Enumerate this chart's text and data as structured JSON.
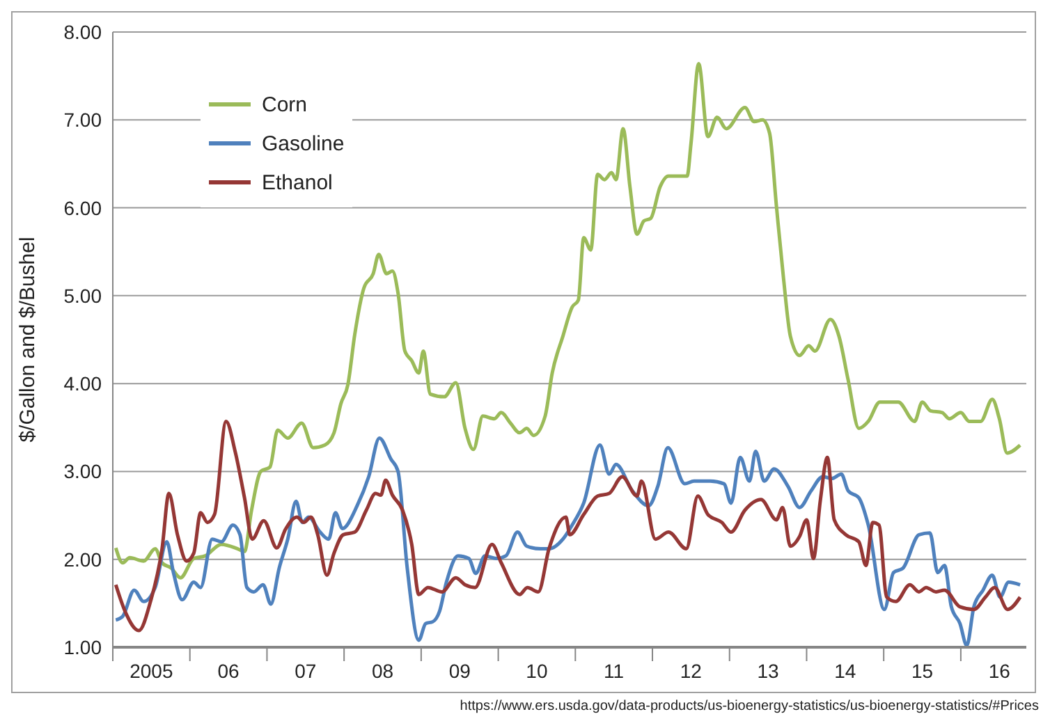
{
  "chart_data": {
    "type": "line",
    "ylabel": "$/Gallon and $/Bushel",
    "xlim": [
      "2005-01-01",
      "2016-11-07"
    ],
    "ylim": [
      1,
      8
    ],
    "yticks": [
      {
        "value": 1,
        "label": "1.00"
      },
      {
        "value": 2,
        "label": "2.00"
      },
      {
        "value": 3,
        "label": "3.00"
      },
      {
        "value": 4,
        "label": "4.00"
      },
      {
        "value": 5,
        "label": "5.00"
      },
      {
        "value": 6,
        "label": "6.00"
      },
      {
        "value": 7,
        "label": "7.00"
      },
      {
        "value": 8,
        "label": "8.00"
      }
    ],
    "xticks": [
      {
        "value": "2005-01-01",
        "label": null
      },
      {
        "value": "2005-07-01",
        "label": "2005"
      },
      {
        "value": "2006-01-01",
        "label": null
      },
      {
        "value": "2006-07-01",
        "label": "06"
      },
      {
        "value": "2007-01-01",
        "label": null
      },
      {
        "value": "2007-07-01",
        "label": "07"
      },
      {
        "value": "2008-01-01",
        "label": null
      },
      {
        "value": "2008-07-01",
        "label": "08"
      },
      {
        "value": "2009-01-01",
        "label": null
      },
      {
        "value": "2009-07-01",
        "label": "09"
      },
      {
        "value": "2010-01-01",
        "label": null
      },
      {
        "value": "2010-07-01",
        "label": "10"
      },
      {
        "value": "2011-01-01",
        "label": null
      },
      {
        "value": "2011-07-01",
        "label": "11"
      },
      {
        "value": "2012-01-01",
        "label": null
      },
      {
        "value": "2012-07-01",
        "label": "12"
      },
      {
        "value": "2013-01-01",
        "label": null
      },
      {
        "value": "2013-07-01",
        "label": "13"
      },
      {
        "value": "2014-01-01",
        "label": null
      },
      {
        "value": "2014-07-01",
        "label": "14"
      },
      {
        "value": "2015-01-01",
        "label": null
      },
      {
        "value": "2015-07-01",
        "label": "15"
      },
      {
        "value": "2016-01-01",
        "label": null
      },
      {
        "value": "2016-07-01",
        "label": "16"
      }
    ],
    "grid": "y",
    "legend": "top left",
    "marker": "none",
    "line_style": "solid",
    "annotations": [
      "https://www.ers.usda.gov/data-products/us-bioenergy-statistics/us-bioenergy-statistics/#Prices"
    ],
    "series": [
      {
        "name": "Corn",
        "color": "#9bbb59",
        "x": [
          "2005-01-15",
          "2005-02-17",
          "2005-03-20",
          "2005-05-25",
          "2005-07-19",
          "2005-08-21",
          "2005-10-04",
          "2005-11-17",
          "2006-01-19",
          "2006-03-13",
          "2006-05-28",
          "2006-08-14",
          "2006-09-16",
          "2006-10-19",
          "2006-12-02",
          "2007-01-15",
          "2007-02-21",
          "2007-04-08",
          "2007-06-13",
          "2007-08-07",
          "2007-10-01",
          "2007-11-14",
          "2007-12-16",
          "2008-01-19",
          "2008-02-21",
          "2008-04-04",
          "2008-05-17",
          "2008-06-13",
          "2008-07-19",
          "2008-08-17",
          "2008-09-13",
          "2008-10-15",
          "2008-11-17",
          "2008-12-20",
          "2009-01-11",
          "2009-02-14",
          "2009-04-19",
          "2009-06-13",
          "2009-07-26",
          "2009-09-05",
          "2009-10-19",
          "2009-12-13",
          "2010-01-15",
          "2010-02-28",
          "2010-04-11",
          "2010-05-14",
          "2010-06-16",
          "2010-08-10",
          "2010-09-13",
          "2010-11-03",
          "2010-12-16",
          "2011-01-15",
          "2011-02-10",
          "2011-03-13",
          "2011-04-15",
          "2011-05-17",
          "2011-06-20",
          "2011-07-11",
          "2011-08-14",
          "2011-09-16",
          "2011-10-19",
          "2011-11-21",
          "2011-12-23",
          "2012-02-07",
          "2012-03-16",
          "2012-06-13",
          "2012-07-01",
          "2012-08-07",
          "2012-09-20",
          "2012-11-03",
          "2012-12-16",
          "2013-03-13",
          "2013-04-26",
          "2013-06-05",
          "2013-07-08",
          "2013-08-10",
          "2013-09-13",
          "2013-10-15",
          "2013-11-28",
          "2014-01-11",
          "2014-02-10",
          "2014-04-22",
          "2014-06-02",
          "2014-07-15",
          "2014-09-05",
          "2014-10-19",
          "2014-12-13",
          "2015-03-09",
          "2015-05-25",
          "2015-07-01",
          "2015-08-10",
          "2015-10-04",
          "2015-11-07",
          "2016-01-01",
          "2016-02-10",
          "2016-04-04",
          "2016-05-28",
          "2016-07-01",
          "2016-08-07",
          "2016-10-08"
        ],
        "values": [
          2.13,
          1.96,
          2.02,
          1.98,
          2.12,
          1.96,
          1.9,
          1.79,
          2.01,
          2.04,
          2.17,
          2.12,
          2.09,
          2.56,
          3.0,
          3.05,
          3.47,
          3.38,
          3.55,
          3.27,
          3.3,
          3.44,
          3.77,
          3.99,
          4.56,
          5.09,
          5.25,
          5.47,
          5.25,
          5.28,
          5.03,
          4.37,
          4.26,
          4.12,
          4.37,
          3.88,
          3.85,
          4.01,
          3.49,
          3.25,
          3.63,
          3.6,
          3.67,
          3.55,
          3.44,
          3.49,
          3.41,
          3.63,
          4.12,
          4.54,
          4.87,
          4.95,
          5.66,
          5.52,
          6.38,
          6.32,
          6.4,
          6.32,
          6.9,
          6.24,
          5.7,
          5.85,
          5.88,
          6.24,
          6.36,
          6.36,
          6.73,
          7.64,
          6.81,
          7.03,
          6.9,
          7.14,
          6.98,
          7.0,
          6.85,
          6.02,
          5.2,
          4.54,
          4.32,
          4.43,
          4.37,
          4.73,
          4.54,
          4.04,
          3.49,
          3.57,
          3.79,
          3.79,
          3.57,
          3.79,
          3.69,
          3.67,
          3.6,
          3.67,
          3.57,
          3.57,
          3.82,
          3.6,
          3.21,
          3.3
        ]
      },
      {
        "name": "Gasoline",
        "color": "#4f81bd",
        "x": [
          "2005-01-15",
          "2005-02-17",
          "2005-04-11",
          "2005-05-25",
          "2005-07-19",
          "2005-09-13",
          "2005-10-15",
          "2005-11-25",
          "2006-01-19",
          "2006-02-21",
          "2006-04-15",
          "2006-05-28",
          "2006-07-22",
          "2006-08-25",
          "2006-09-27",
          "2006-10-29",
          "2006-12-13",
          "2007-01-19",
          "2007-02-28",
          "2007-04-08",
          "2007-05-17",
          "2007-06-16",
          "2007-07-15",
          "2007-09-09",
          "2007-10-19",
          "2007-11-21",
          "2007-12-23",
          "2008-03-02",
          "2008-04-26",
          "2008-06-16",
          "2008-08-10",
          "2008-09-13",
          "2008-10-26",
          "2008-12-20",
          "2009-01-22",
          "2009-02-25",
          "2009-03-27",
          "2009-04-29",
          "2009-06-23",
          "2009-08-14",
          "2009-09-16",
          "2009-10-29",
          "2009-12-23",
          "2010-02-07",
          "2010-04-01",
          "2010-05-14",
          "2010-07-19",
          "2010-08-28",
          "2010-11-03",
          "2010-12-16",
          "2011-02-10",
          "2011-04-26",
          "2011-06-09",
          "2011-07-11",
          "2011-09-27",
          "2011-12-13",
          "2012-01-26",
          "2012-03-13",
          "2012-06-02",
          "2012-07-15",
          "2012-10-01",
          "2012-12-05",
          "2013-01-08",
          "2013-02-21",
          "2013-04-04",
          "2013-05-03",
          "2013-06-13",
          "2013-07-29",
          "2013-10-04",
          "2013-11-28",
          "2014-01-22",
          "2014-03-16",
          "2014-04-29",
          "2014-06-13",
          "2014-07-15",
          "2014-09-05",
          "2014-10-19",
          "2015-01-04",
          "2015-02-17",
          "2015-04-01",
          "2015-06-16",
          "2015-08-07",
          "2015-09-13",
          "2015-10-15",
          "2015-11-17",
          "2015-12-27",
          "2016-01-29",
          "2016-03-02",
          "2016-04-15",
          "2016-05-28",
          "2016-07-04",
          "2016-08-14",
          "2016-10-08"
        ],
        "values": [
          1.31,
          1.35,
          1.65,
          1.52,
          1.68,
          2.2,
          1.84,
          1.54,
          1.74,
          1.68,
          2.23,
          2.2,
          2.39,
          2.28,
          1.68,
          1.63,
          1.71,
          1.49,
          1.9,
          2.23,
          2.66,
          2.42,
          2.48,
          2.31,
          2.23,
          2.53,
          2.35,
          2.61,
          2.94,
          3.38,
          3.14,
          3.0,
          1.9,
          1.08,
          1.27,
          1.29,
          1.41,
          1.74,
          2.04,
          2.01,
          1.84,
          2.04,
          2.01,
          2.04,
          2.31,
          2.15,
          2.12,
          2.12,
          2.23,
          2.39,
          2.64,
          3.3,
          2.97,
          3.08,
          2.78,
          2.61,
          2.83,
          3.27,
          2.86,
          2.89,
          2.89,
          2.86,
          2.64,
          3.16,
          2.89,
          3.23,
          2.89,
          3.03,
          2.83,
          2.59,
          2.78,
          2.94,
          2.92,
          2.97,
          2.78,
          2.7,
          2.39,
          1.43,
          1.85,
          1.9,
          2.28,
          2.3,
          1.85,
          1.93,
          1.46,
          1.27,
          1.02,
          1.46,
          1.65,
          1.82,
          1.57,
          1.74,
          1.71
        ]
      },
      {
        "name": "Ethanol",
        "color": "#953735",
        "x": [
          "2005-01-15",
          "2005-02-28",
          "2005-05-03",
          "2005-06-27",
          "2005-08-21",
          "2005-09-23",
          "2005-11-03",
          "2005-12-16",
          "2006-01-19",
          "2006-02-21",
          "2006-03-23",
          "2006-04-26",
          "2006-06-20",
          "2006-08-03",
          "2006-09-16",
          "2006-10-22",
          "2006-12-16",
          "2007-02-17",
          "2007-03-27",
          "2007-05-21",
          "2007-06-23",
          "2007-07-26",
          "2007-08-28",
          "2007-10-11",
          "2007-11-14",
          "2007-12-27",
          "2008-02-21",
          "2008-04-15",
          "2008-05-28",
          "2008-06-23",
          "2008-07-15",
          "2008-08-17",
          "2008-10-04",
          "2008-11-17",
          "2008-12-20",
          "2009-02-03",
          "2009-04-08",
          "2009-06-13",
          "2009-07-26",
          "2009-09-13",
          "2009-12-02",
          "2010-01-15",
          "2010-04-11",
          "2010-05-17",
          "2010-07-08",
          "2010-08-28",
          "2010-11-17",
          "2010-12-05",
          "2011-02-10",
          "2011-04-15",
          "2011-06-09",
          "2011-08-10",
          "2011-10-19",
          "2011-11-10",
          "2012-01-15",
          "2012-03-16",
          "2012-06-09",
          "2012-08-03",
          "2012-09-20",
          "2012-11-25",
          "2013-01-08",
          "2013-03-13",
          "2013-05-28",
          "2013-08-10",
          "2013-09-09",
          "2013-10-15",
          "2013-11-28",
          "2014-01-01",
          "2014-02-03",
          "2014-03-05",
          "2014-04-08",
          "2014-05-10",
          "2014-07-04",
          "2014-09-05",
          "2014-10-08",
          "2014-11-10",
          "2014-12-09",
          "2015-01-15",
          "2015-02-28",
          "2015-05-03",
          "2015-06-16",
          "2015-07-19",
          "2015-09-05",
          "2015-10-15",
          "2015-12-27",
          "2016-03-02",
          "2016-04-26",
          "2016-06-09",
          "2016-08-10",
          "2016-10-08"
        ],
        "values": [
          1.71,
          1.41,
          1.19,
          1.52,
          2.12,
          2.75,
          2.28,
          1.98,
          2.07,
          2.53,
          2.42,
          2.51,
          3.57,
          3.22,
          2.7,
          2.23,
          2.44,
          2.13,
          2.34,
          2.48,
          2.42,
          2.48,
          2.28,
          1.82,
          2.07,
          2.28,
          2.31,
          2.56,
          2.75,
          2.73,
          2.9,
          2.73,
          2.56,
          2.17,
          1.6,
          1.68,
          1.63,
          1.79,
          1.71,
          1.68,
          2.17,
          1.96,
          1.6,
          1.68,
          1.63,
          2.12,
          2.48,
          2.28,
          2.51,
          2.72,
          2.75,
          2.94,
          2.72,
          2.89,
          2.23,
          2.31,
          2.12,
          2.72,
          2.51,
          2.42,
          2.31,
          2.56,
          2.68,
          2.45,
          2.59,
          2.15,
          2.26,
          2.45,
          2.01,
          2.67,
          3.16,
          2.45,
          2.28,
          2.2,
          1.93,
          2.42,
          2.39,
          1.57,
          1.52,
          1.71,
          1.63,
          1.68,
          1.63,
          1.65,
          1.46,
          1.43,
          1.57,
          1.68,
          1.43,
          1.57
        ]
      }
    ]
  }
}
